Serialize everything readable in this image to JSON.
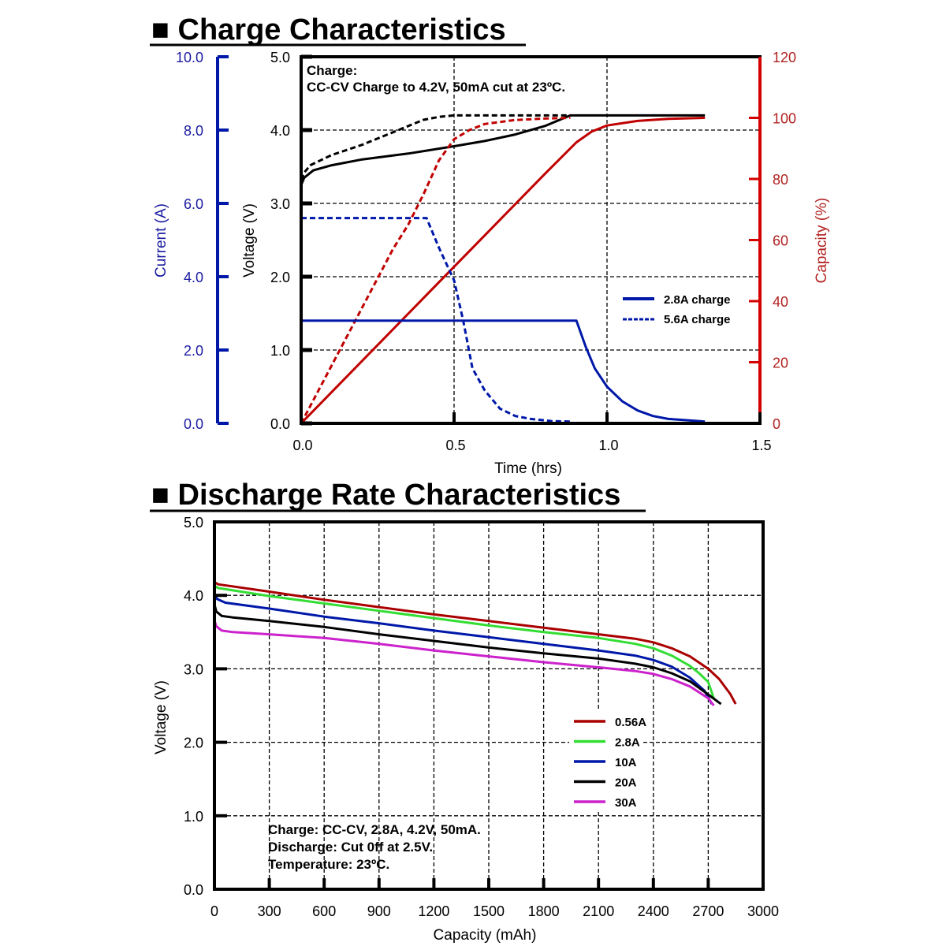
{
  "chart_data": [
    {
      "type": "line",
      "title": "■ Charge Characteristics",
      "xlabel": "Time (hrs)",
      "xlim": [
        0,
        1.5
      ],
      "xticks": [
        "0.0",
        "0.5",
        "1.0",
        "1.5"
      ],
      "axes": {
        "current": {
          "label": "Current (A)",
          "lim": [
            0,
            10
          ],
          "ticks": [
            "0.0",
            "2.0",
            "4.0",
            "6.0",
            "8.0",
            "10.0"
          ],
          "color": "#00008b"
        },
        "voltage": {
          "label": "Voltage (V)",
          "lim": [
            0,
            5
          ],
          "ticks": [
            "0.0",
            "1.0",
            "2.0",
            "3.0",
            "4.0",
            "5.0"
          ],
          "color": "#000000"
        },
        "capacity": {
          "label": "Capacity (%)",
          "lim": [
            0,
            120
          ],
          "ticks": [
            "0",
            "20",
            "40",
            "60",
            "80",
            "100",
            "120"
          ],
          "color": "#cc0000"
        }
      },
      "annotation": {
        "line1": "Charge:",
        "line2": "CC-CV Charge to 4.2V, 50mA cut at 23ºC."
      },
      "legend": {
        "placement": "center-right",
        "entries": [
          {
            "label": "2.8A charge",
            "style": "solid",
            "color": "#0018a8"
          },
          {
            "label": "5.6A charge",
            "style": "dashed",
            "color": "#0018a8"
          }
        ]
      },
      "series": [
        {
          "name": "Voltage 2.8A charge",
          "axis": "voltage",
          "style": "solid",
          "color": "#000000",
          "x": [
            0,
            0.01,
            0.04,
            0.1,
            0.2,
            0.35,
            0.5,
            0.6,
            0.7,
            0.8,
            0.88,
            1.0,
            1.2,
            1.32
          ],
          "y": [
            3.25,
            3.35,
            3.45,
            3.52,
            3.6,
            3.68,
            3.78,
            3.85,
            3.94,
            4.06,
            4.2,
            4.2,
            4.2,
            4.2
          ]
        },
        {
          "name": "Voltage 5.6A charge",
          "axis": "voltage",
          "style": "dashed",
          "color": "#000000",
          "x": [
            0,
            0.01,
            0.03,
            0.1,
            0.2,
            0.3,
            0.4,
            0.45,
            0.5,
            0.6,
            0.7,
            0.8,
            0.88
          ],
          "y": [
            3.32,
            3.42,
            3.52,
            3.66,
            3.8,
            3.97,
            4.14,
            4.18,
            4.2,
            4.2,
            4.2,
            4.2,
            4.2
          ]
        },
        {
          "name": "Capacity 2.8A charge",
          "axis": "capacity",
          "style": "solid",
          "color": "#c00000",
          "x": [
            0,
            0.2,
            0.4,
            0.6,
            0.8,
            0.9,
            0.95,
            1.0,
            1.1,
            1.2,
            1.32
          ],
          "y": [
            0,
            20.5,
            41,
            61.5,
            82,
            92,
            95.5,
            97.5,
            99,
            99.7,
            100
          ]
        },
        {
          "name": "Capacity 5.6A charge",
          "axis": "capacity",
          "style": "dashed",
          "color": "#c00000",
          "x": [
            0,
            0.1,
            0.2,
            0.3,
            0.35,
            0.4,
            0.45,
            0.5,
            0.55,
            0.6,
            0.7,
            0.8,
            0.88
          ],
          "y": [
            0,
            19,
            38,
            57,
            65,
            75,
            86,
            93,
            96,
            98,
            99.3,
            99.8,
            100
          ]
        },
        {
          "name": "Current 2.8A charge",
          "axis": "current",
          "style": "solid",
          "color": "#0018a8",
          "x": [
            0,
            0.2,
            0.5,
            0.9,
            0.93,
            0.96,
            1.0,
            1.05,
            1.1,
            1.15,
            1.2,
            1.32
          ],
          "y": [
            2.8,
            2.8,
            2.8,
            2.8,
            2.1,
            1.5,
            1.0,
            0.6,
            0.35,
            0.2,
            0.12,
            0.05
          ]
        },
        {
          "name": "Current 5.6A charge",
          "axis": "current",
          "style": "dashed",
          "color": "#0018a8",
          "x": [
            0,
            0.2,
            0.41,
            0.45,
            0.5,
            0.53,
            0.56,
            0.6,
            0.65,
            0.7,
            0.75,
            0.82,
            0.88
          ],
          "y": [
            5.6,
            5.6,
            5.6,
            4.8,
            3.9,
            2.8,
            1.5,
            0.9,
            0.4,
            0.2,
            0.12,
            0.06,
            0.05
          ]
        }
      ]
    },
    {
      "type": "line",
      "title": "■ Discharge Rate Characteristics",
      "xlabel": "Capacity (mAh)",
      "ylabel": "Voltage (V)",
      "xlim": [
        0,
        3000
      ],
      "ylim": [
        0,
        5
      ],
      "xticks": [
        "0",
        "300",
        "600",
        "900",
        "1200",
        "1500",
        "1800",
        "2100",
        "2400",
        "2700",
        "3000"
      ],
      "yticks": [
        "0.0",
        "1.0",
        "2.0",
        "3.0",
        "4.0",
        "5.0"
      ],
      "grid": true,
      "annotation": {
        "line1": "Charge: CC-CV, 2.8A, 4.2V, 50mA.",
        "line2": "Discharge: Cut 0ff at 2.5V.",
        "line3": "Temperature: 23ºC."
      },
      "legend": {
        "placement": "center-right",
        "entries": [
          {
            "label": "0.56A",
            "color": "#aa0000"
          },
          {
            "label": "2.8A",
            "color": "#33dd33"
          },
          {
            "label": "10A",
            "color": "#0018a8"
          },
          {
            "label": "20A",
            "color": "#000000"
          },
          {
            "label": "30A",
            "color": "#cc22cc"
          }
        ]
      },
      "series": [
        {
          "name": "0.56A",
          "color": "#aa0000",
          "x": [
            0,
            20,
            300,
            600,
            900,
            1200,
            1500,
            1800,
            2100,
            2300,
            2400,
            2500,
            2600,
            2700,
            2760,
            2820,
            2850
          ],
          "y": [
            4.18,
            4.15,
            4.05,
            3.94,
            3.84,
            3.74,
            3.65,
            3.56,
            3.47,
            3.41,
            3.36,
            3.28,
            3.17,
            3.0,
            2.86,
            2.66,
            2.52
          ]
        },
        {
          "name": "2.8A",
          "color": "#33dd33",
          "x": [
            0,
            20,
            300,
            600,
            900,
            1200,
            1500,
            1800,
            2100,
            2300,
            2400,
            2500,
            2600,
            2650,
            2700,
            2730
          ],
          "y": [
            4.13,
            4.1,
            3.99,
            3.89,
            3.79,
            3.69,
            3.59,
            3.5,
            3.42,
            3.34,
            3.28,
            3.18,
            3.04,
            2.94,
            2.82,
            2.6
          ]
        },
        {
          "name": "10A",
          "color": "#0018a8",
          "x": [
            0,
            15,
            60,
            300,
            600,
            900,
            1200,
            1500,
            1800,
            2100,
            2300,
            2400,
            2500,
            2600,
            2680,
            2720
          ],
          "y": [
            4.02,
            3.95,
            3.9,
            3.82,
            3.71,
            3.62,
            3.52,
            3.43,
            3.34,
            3.25,
            3.18,
            3.12,
            3.03,
            2.88,
            2.7,
            2.52
          ]
        },
        {
          "name": "20A",
          "color": "#000000",
          "x": [
            0,
            10,
            40,
            100,
            300,
            600,
            900,
            1200,
            1500,
            1800,
            2100,
            2300,
            2400,
            2500,
            2600,
            2700,
            2770
          ],
          "y": [
            3.88,
            3.78,
            3.72,
            3.7,
            3.65,
            3.57,
            3.47,
            3.38,
            3.29,
            3.21,
            3.14,
            3.07,
            3.02,
            2.94,
            2.83,
            2.65,
            2.52
          ]
        },
        {
          "name": "30A",
          "color": "#cc22cc",
          "x": [
            0,
            10,
            40,
            100,
            300,
            600,
            900,
            1200,
            1500,
            1800,
            2100,
            2300,
            2400,
            2500,
            2600,
            2700,
            2730
          ],
          "y": [
            3.66,
            3.58,
            3.52,
            3.5,
            3.47,
            3.42,
            3.34,
            3.25,
            3.17,
            3.09,
            3.02,
            2.97,
            2.93,
            2.86,
            2.76,
            2.6,
            2.5
          ]
        }
      ]
    }
  ]
}
